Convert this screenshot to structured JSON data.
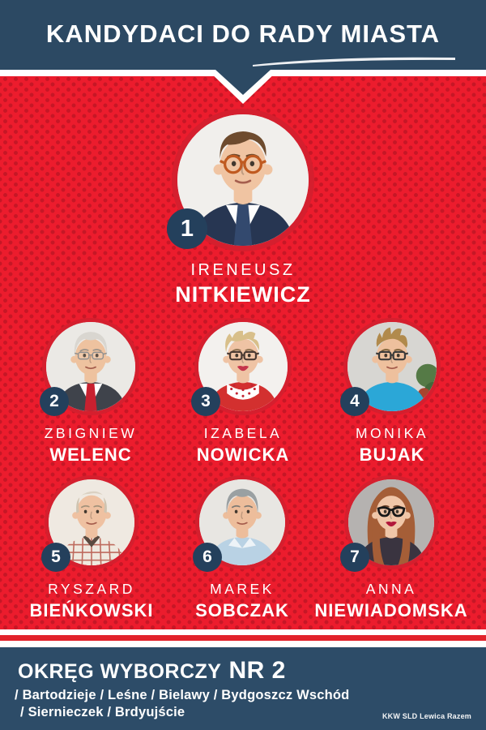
{
  "header": {
    "title": "KANDYDACI DO RADY MIASTA"
  },
  "colors": {
    "navy_header": "#2c4963",
    "navy_footer": "#2d4c68",
    "navy_badge": "#24405c",
    "red_background": "#ec1c2d",
    "red_dots": "#a01220",
    "red_photo_ring": "#d51f2e",
    "red_flag_stripe": "#e2222b",
    "white": "#ffffff"
  },
  "candidates": [
    {
      "number": "1",
      "first_name": "IRENEUSZ",
      "last_name": "NITKIEWICZ",
      "avatar": {
        "bg": "#f1efec",
        "skin": "#f0c4a2",
        "hair": "#6e4b2e",
        "hair_style": "side",
        "glasses": "round",
        "glass_color": "#c05a20",
        "coat": "#273652",
        "shirt": "#fdfdfd",
        "tie": "#33496e"
      }
    },
    {
      "number": "2",
      "first_name": "ZBIGNIEW",
      "last_name": "WELENC",
      "avatar": {
        "bg": "#ebe9e5",
        "skin": "#eec29f",
        "hair": "#d9d6d0",
        "brow": "#9a938a",
        "hair_style": "full",
        "glasses": "thin",
        "glass_color": "#8f8f8f",
        "coat": "#3f434b",
        "shirt": "#ffffff",
        "tie": "#c8202f"
      }
    },
    {
      "number": "3",
      "first_name": "IZABELA",
      "last_name": "NOWICKA",
      "avatar": {
        "bg": "#f3f1ee",
        "skin": "#efc3a4",
        "hair": "#d8bf8a",
        "brow": "#8a6f4d",
        "hair_style": "tousled",
        "glasses": "rect",
        "glass_color": "#4a3a33",
        "coat": "#d3302f",
        "scarf": true,
        "lips": "#c5344b"
      }
    },
    {
      "number": "4",
      "first_name": "MONIKA",
      "last_name": "BUJAK",
      "avatar": {
        "bg": "#d7d6d2",
        "skin": "#eec09d",
        "hair": "#b18a4c",
        "brow": "#7d6138",
        "hair_style": "spiky",
        "glasses": "rect",
        "glass_color": "#3a3a3a",
        "coat": "#2ba7d7",
        "plant": true
      }
    },
    {
      "number": "5",
      "first_name": "RYSZARD",
      "last_name": "BIEŃKOWSKI",
      "avatar": {
        "bg": "#efe9e1",
        "skin": "#efc1a1",
        "hair": "#cfc4b1",
        "brow": "#a3927b",
        "hair_style": "bald",
        "glasses": "none",
        "coat": "#efe9df",
        "check": true
      }
    },
    {
      "number": "6",
      "first_name": "MAREK",
      "last_name": "SOBCZAK",
      "avatar": {
        "bg": "#e8e6e2",
        "skin": "#edbd9b",
        "hair": "#9aa0a2",
        "brow": "#7e7a74",
        "hair_style": "full",
        "glasses": "none",
        "coat": "#b9d2e4",
        "collar": true
      }
    },
    {
      "number": "7",
      "first_name": "ANNA",
      "last_name": "NIEWIADOMSKA",
      "avatar": {
        "bg": "#b5b2b0",
        "skin": "#f0c6a8",
        "hair": "#a55e37",
        "brow": "#6e432a",
        "hair_style": "long",
        "glasses": "cateye",
        "glass_color": "#181818",
        "coat": "#3a3440",
        "lips": "#b2173a"
      }
    }
  ],
  "footer": {
    "district_label": "OKRĘG WYBORCZY",
    "district_number": "NR 2",
    "areas_line1": "/ Bartodzieje / Leśne / Bielawy / Bydgoszcz Wschód",
    "areas_line2": "/ Siernieczek / Brdyujście",
    "committee": "KKW SLD Lewica Razem"
  }
}
